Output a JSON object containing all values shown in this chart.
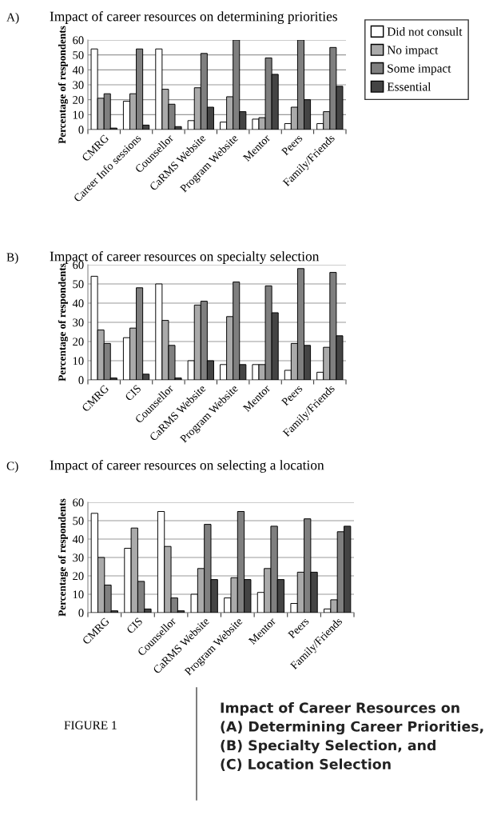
{
  "chart_data": [
    {
      "type": "bar",
      "title": "Impact of career resources on determining priorities",
      "ylabel": "Percentage of respondents",
      "categories": [
        "CMRG",
        "Career Info sessions",
        "Counsellor",
        "CaRMS Website",
        "Program Website",
        "Mentor",
        "Peers",
        "Family/Friends"
      ],
      "ylim": [
        0,
        60
      ],
      "yticks": [
        0,
        10,
        20,
        30,
        40,
        50,
        60
      ],
      "grid": "y",
      "legend": "right",
      "annotations": [
        "A)"
      ],
      "series": [
        {
          "name": "Did not consult",
          "color": "#ffffff",
          "values": [
            54,
            19,
            54,
            6,
            5,
            7,
            4,
            4
          ]
        },
        {
          "name": "No impact",
          "color": "#aaaaaa",
          "values": [
            21,
            24,
            27,
            28,
            22,
            8,
            15,
            12
          ]
        },
        {
          "name": "Some impact",
          "color": "#7f7f7f",
          "values": [
            24,
            54,
            17,
            51,
            60,
            48,
            60,
            55
          ]
        },
        {
          "name": "Essential",
          "color": "#444444",
          "values": [
            1,
            3,
            2,
            15,
            12,
            37,
            20,
            29
          ]
        }
      ]
    },
    {
      "type": "bar",
      "title": "Impact of career resources on specialty selection",
      "ylabel": "Percentage of respondents",
      "categories": [
        "CMRG",
        "CIS",
        "Counsellor",
        "CaRMS Website",
        "Program Website",
        "Mentor",
        "Peers",
        "Family/Friends"
      ],
      "ylim": [
        0,
        60
      ],
      "yticks": [
        0,
        10,
        20,
        30,
        40,
        50,
        60
      ],
      "grid": "y",
      "annotations": [
        "B)"
      ],
      "series": [
        {
          "color": "#ffffff",
          "values": [
            54,
            22,
            50,
            10,
            8,
            8,
            5,
            4
          ]
        },
        {
          "color": "#aaaaaa",
          "values": [
            26,
            27,
            31,
            39,
            33,
            8,
            19,
            17
          ]
        },
        {
          "color": "#7f7f7f",
          "values": [
            19,
            48,
            18,
            41,
            51,
            49,
            58,
            56
          ]
        },
        {
          "color": "#444444",
          "values": [
            1,
            3,
            1,
            10,
            8,
            35,
            18,
            23
          ]
        }
      ]
    },
    {
      "type": "bar",
      "title": "Impact of career resources on selecting a location",
      "ylabel": "Percentage of respondents",
      "categories": [
        "CMRG",
        "CIS",
        "Counsellor",
        "CaRMS Website",
        "Program Website",
        "Mentor",
        "Peers",
        "Family/Friends"
      ],
      "ylim": [
        0,
        60
      ],
      "yticks": [
        0,
        10,
        20,
        30,
        40,
        50,
        60
      ],
      "grid": "y",
      "annotations": [
        "C)",
        "FIGURE 1",
        "Impact of Career Resources on\n(A) Determining Career Priorities,\n(B) Specialty Selection, and\n(C) Location Selection"
      ],
      "series": [
        {
          "color": "#ffffff",
          "values": [
            54,
            35,
            55,
            10,
            8,
            11,
            5,
            2
          ]
        },
        {
          "color": "#aaaaaa",
          "values": [
            30,
            46,
            36,
            24,
            19,
            24,
            22,
            7
          ]
        },
        {
          "color": "#7f7f7f",
          "values": [
            15,
            17,
            8,
            48,
            55,
            47,
            51,
            44
          ]
        },
        {
          "color": "#444444",
          "values": [
            1,
            2,
            1,
            18,
            18,
            18,
            22,
            47
          ]
        }
      ]
    }
  ]
}
